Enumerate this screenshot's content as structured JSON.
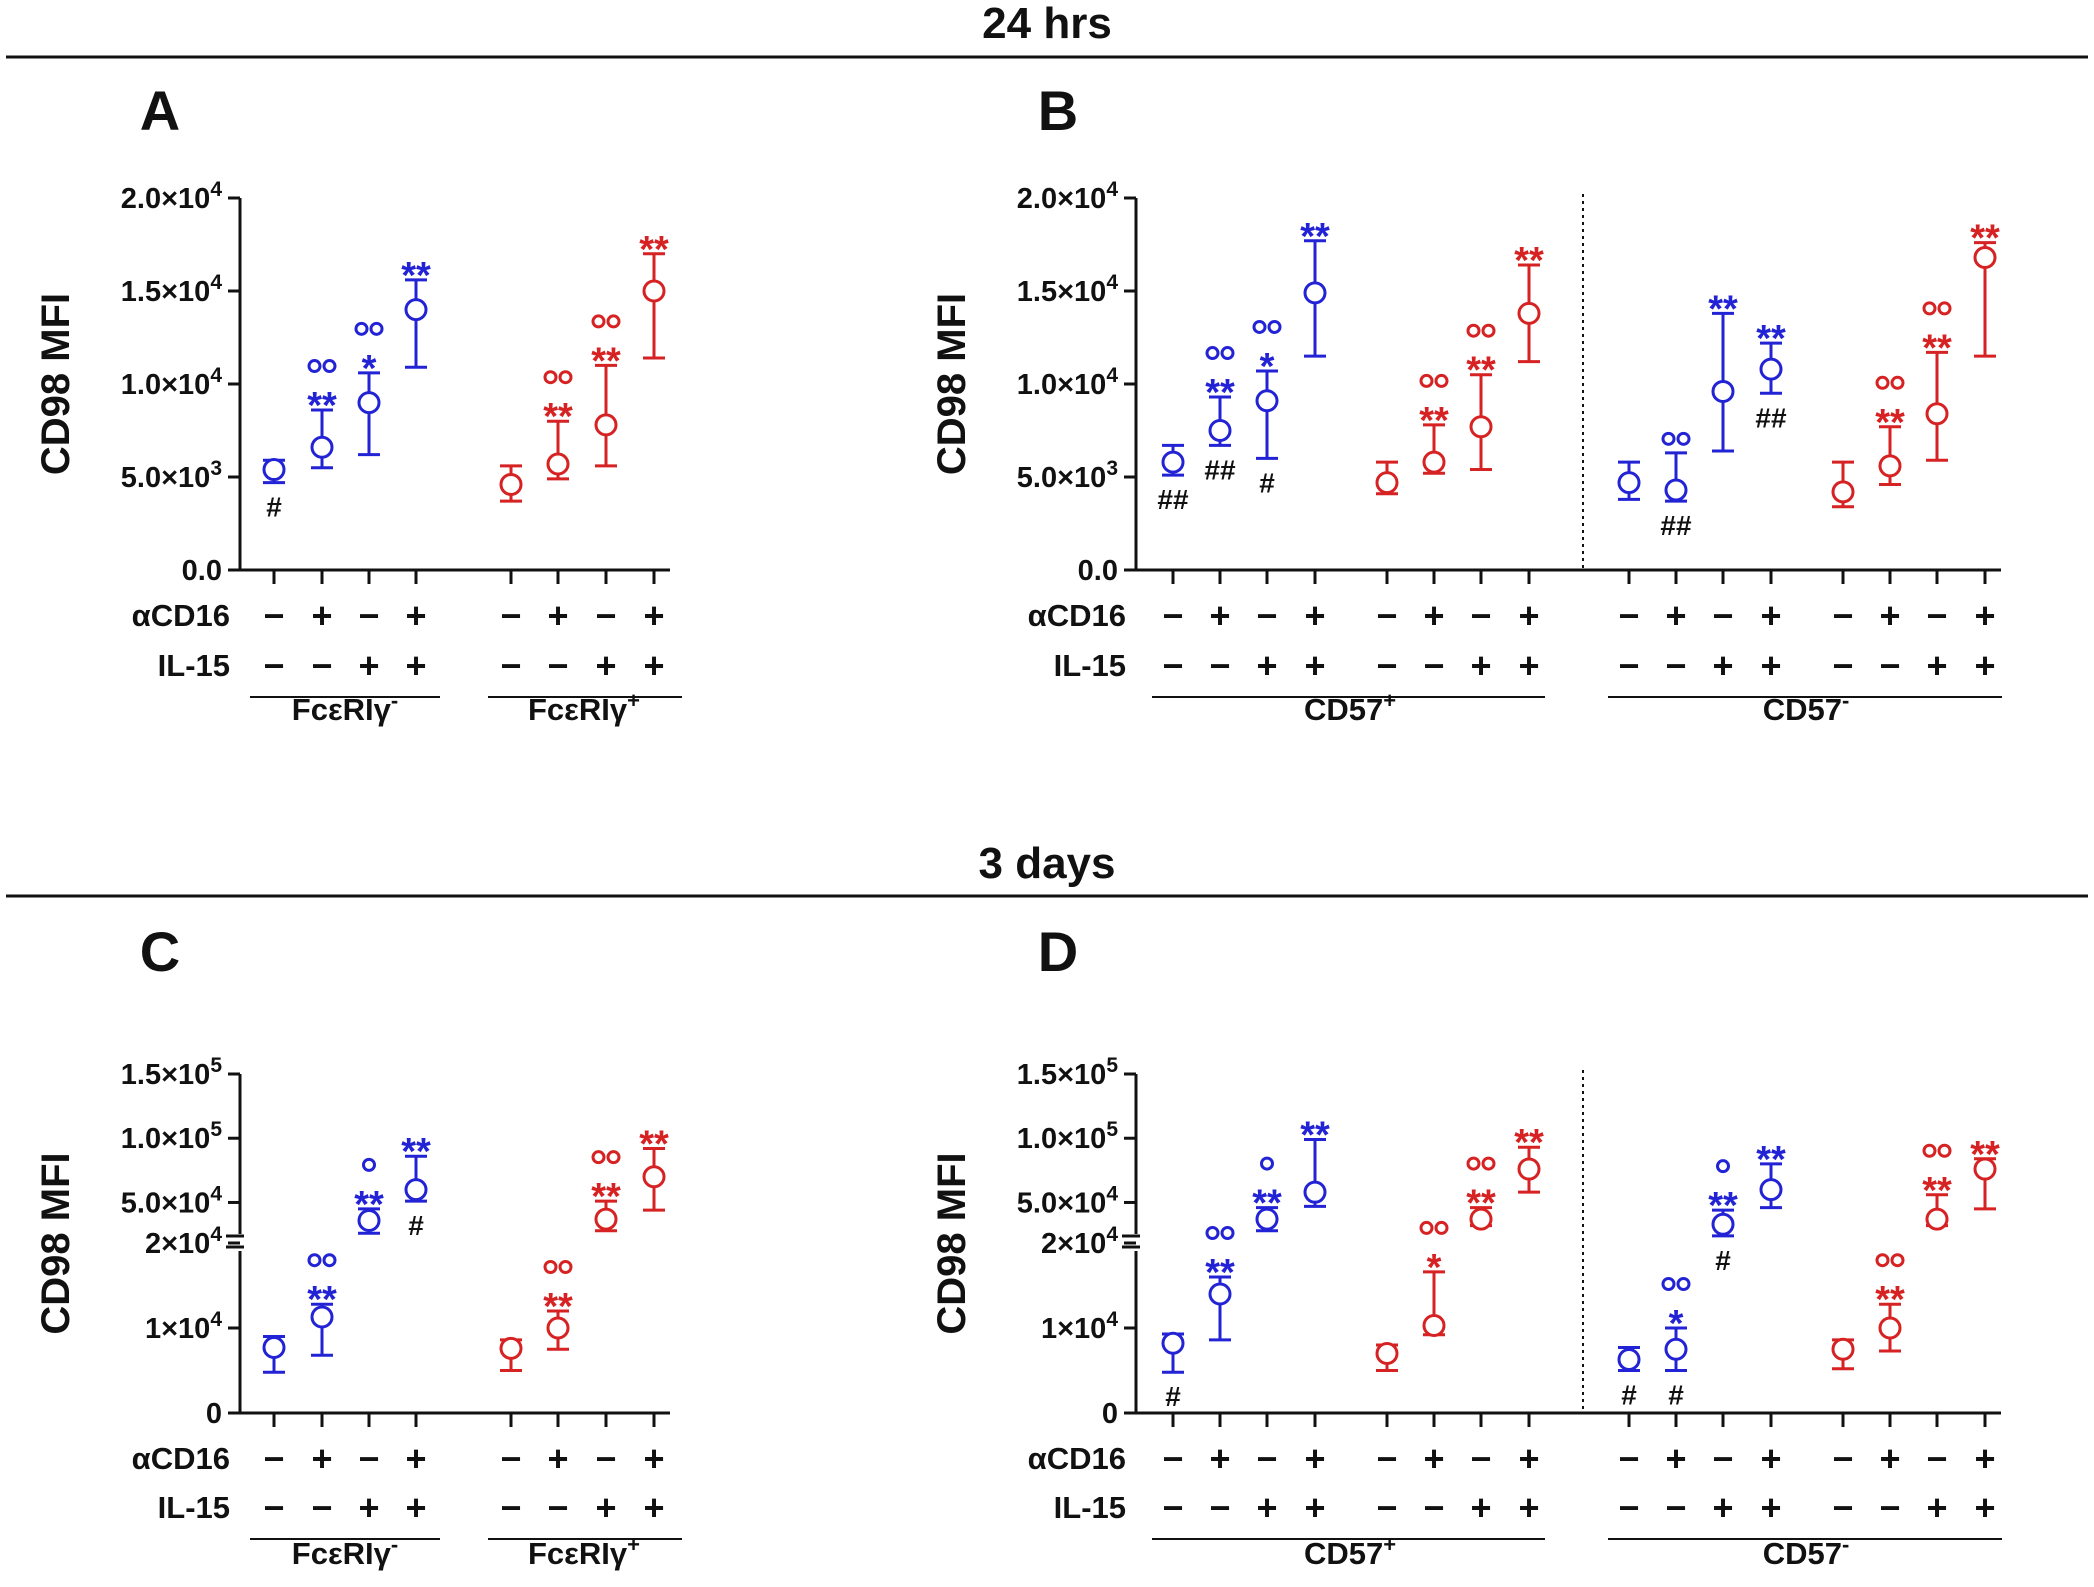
{
  "figure": {
    "sections": [
      "24 hrs",
      "3 days"
    ],
    "colors": {
      "blue": "#2323d6",
      "red": "#d62222",
      "black": "#111111"
    }
  },
  "chart_data": [
    {
      "panel": "A",
      "type": "scatter",
      "subtype": "mean-with-error-bars",
      "section": "24 hrs",
      "ylabel": "CD98 MFI",
      "yscale": "linear",
      "ylim": [
        0,
        20000
      ],
      "yticks": [
        {
          "v": 0,
          "t": "0.0"
        },
        {
          "v": 5000,
          "t": "5.0×10",
          "e": "3"
        },
        {
          "v": 10000,
          "t": "1.0×10",
          "e": "4"
        },
        {
          "v": 15000,
          "t": "1.5×10",
          "e": "4"
        },
        {
          "v": 20000,
          "t": "2.0×10",
          "e": "4"
        }
      ],
      "row_labels": [
        "αCD16",
        "IL-15"
      ],
      "groups": [
        {
          "label": "FcεRIγ",
          "sup": "-",
          "color": "blue",
          "points": [
            {
              "acd16": "−",
              "il15": "−",
              "mean": 5400,
              "lo": 4700,
              "hi": 5900,
              "stars": "",
              "circles": "",
              "hash": "#"
            },
            {
              "acd16": "+",
              "il15": "−",
              "mean": 6600,
              "lo": 5500,
              "hi": 8600,
              "stars": "**",
              "circles": "oo",
              "hash": ""
            },
            {
              "acd16": "−",
              "il15": "+",
              "mean": 9000,
              "lo": 6200,
              "hi": 10600,
              "stars": "*",
              "circles": "oo",
              "hash": ""
            },
            {
              "acd16": "+",
              "il15": "+",
              "mean": 14000,
              "lo": 10900,
              "hi": 15600,
              "stars": "**",
              "circles": "",
              "hash": ""
            }
          ]
        },
        {
          "label": "FcεRIγ",
          "sup": "+",
          "color": "red",
          "points": [
            {
              "acd16": "−",
              "il15": "−",
              "mean": 4600,
              "lo": 3700,
              "hi": 5600,
              "stars": "",
              "circles": "",
              "hash": ""
            },
            {
              "acd16": "+",
              "il15": "−",
              "mean": 5700,
              "lo": 4900,
              "hi": 8000,
              "stars": "**",
              "circles": "oo",
              "hash": ""
            },
            {
              "acd16": "−",
              "il15": "+",
              "mean": 7800,
              "lo": 5600,
              "hi": 11000,
              "stars": "**",
              "circles": "oo",
              "hash": ""
            },
            {
              "acd16": "+",
              "il15": "+",
              "mean": 15000,
              "lo": 11400,
              "hi": 17000,
              "stars": "**",
              "circles": "",
              "hash": ""
            }
          ]
        }
      ]
    },
    {
      "panel": "B",
      "type": "scatter",
      "subtype": "mean-with-error-bars",
      "section": "24 hrs",
      "ylabel": "CD98 MFI",
      "yscale": "linear",
      "ylim": [
        0,
        20000
      ],
      "yticks": [
        {
          "v": 0,
          "t": "0.0"
        },
        {
          "v": 5000,
          "t": "5.0×10",
          "e": "3"
        },
        {
          "v": 10000,
          "t": "1.0×10",
          "e": "4"
        },
        {
          "v": 15000,
          "t": "1.5×10",
          "e": "4"
        },
        {
          "v": 20000,
          "t": "2.0×10",
          "e": "4"
        }
      ],
      "row_labels": [
        "αCD16",
        "IL-15"
      ],
      "subsets": [
        {
          "label": "CD57",
          "sup": "+"
        },
        {
          "label": "CD57",
          "sup": "-"
        }
      ],
      "groups": [
        {
          "subset": 0,
          "color": "blue",
          "points": [
            {
              "acd16": "−",
              "il15": "−",
              "mean": 5800,
              "lo": 5100,
              "hi": 6700,
              "stars": "",
              "circles": "",
              "hash": "##"
            },
            {
              "acd16": "+",
              "il15": "−",
              "mean": 7500,
              "lo": 6700,
              "hi": 9300,
              "stars": "**",
              "circles": "oo",
              "hash": "##"
            },
            {
              "acd16": "−",
              "il15": "+",
              "mean": 9100,
              "lo": 6000,
              "hi": 10700,
              "stars": "*",
              "circles": "oo",
              "hash": "#"
            },
            {
              "acd16": "+",
              "il15": "+",
              "mean": 14900,
              "lo": 11500,
              "hi": 17700,
              "stars": "**",
              "circles": "",
              "hash": ""
            }
          ]
        },
        {
          "subset": 0,
          "color": "red",
          "points": [
            {
              "acd16": "−",
              "il15": "−",
              "mean": 4700,
              "lo": 4100,
              "hi": 5800,
              "stars": "",
              "circles": "",
              "hash": ""
            },
            {
              "acd16": "+",
              "il15": "−",
              "mean": 5800,
              "lo": 5200,
              "hi": 7800,
              "stars": "**",
              "circles": "oo",
              "hash": ""
            },
            {
              "acd16": "−",
              "il15": "+",
              "mean": 7700,
              "lo": 5400,
              "hi": 10500,
              "stars": "**",
              "circles": "oo",
              "hash": ""
            },
            {
              "acd16": "+",
              "il15": "+",
              "mean": 13800,
              "lo": 11200,
              "hi": 16400,
              "stars": "**",
              "circles": "",
              "hash": ""
            }
          ]
        },
        {
          "subset": 1,
          "color": "blue",
          "points": [
            {
              "acd16": "−",
              "il15": "−",
              "mean": 4700,
              "lo": 3800,
              "hi": 5800,
              "stars": "",
              "circles": "",
              "hash": ""
            },
            {
              "acd16": "+",
              "il15": "−",
              "mean": 4300,
              "lo": 3700,
              "hi": 6300,
              "stars": "",
              "circles": "oo",
              "hash": "##"
            },
            {
              "acd16": "−",
              "il15": "+",
              "mean": 9600,
              "lo": 6400,
              "hi": 13800,
              "stars": "**",
              "circles": "",
              "hash": ""
            },
            {
              "acd16": "+",
              "il15": "+",
              "mean": 10800,
              "lo": 9500,
              "hi": 12200,
              "stars": "**",
              "circles": "",
              "hash": "##"
            }
          ]
        },
        {
          "subset": 1,
          "color": "red",
          "points": [
            {
              "acd16": "−",
              "il15": "−",
              "mean": 4200,
              "lo": 3400,
              "hi": 5800,
              "stars": "",
              "circles": "",
              "hash": ""
            },
            {
              "acd16": "+",
              "il15": "−",
              "mean": 5600,
              "lo": 4600,
              "hi": 7700,
              "stars": "**",
              "circles": "oo",
              "hash": ""
            },
            {
              "acd16": "−",
              "il15": "+",
              "mean": 8400,
              "lo": 5900,
              "hi": 11700,
              "stars": "**",
              "circles": "oo",
              "hash": ""
            },
            {
              "acd16": "+",
              "il15": "+",
              "mean": 16800,
              "lo": 11500,
              "hi": 17600,
              "stars": "**",
              "circles": "",
              "hash": ""
            }
          ]
        }
      ]
    },
    {
      "panel": "C",
      "type": "scatter",
      "subtype": "mean-with-error-bars",
      "section": "3 days",
      "ylabel": "CD98 MFI",
      "yscale": "segmented",
      "ysegments": {
        "lower": [
          0,
          20000
        ],
        "upper": [
          20000,
          150000
        ],
        "break_at": 20000
      },
      "yticks": [
        {
          "v": 0,
          "t": "0"
        },
        {
          "v": 10000,
          "t": "1×10",
          "e": "4"
        },
        {
          "v": 20000,
          "t": "2×10",
          "e": "4"
        },
        {
          "v": 50000,
          "t": "5.0×10",
          "e": "4"
        },
        {
          "v": 100000,
          "t": "1.0×10",
          "e": "5"
        },
        {
          "v": 150000,
          "t": "1.5×10",
          "e": "5"
        }
      ],
      "row_labels": [
        "αCD16",
        "IL-15"
      ],
      "groups": [
        {
          "label": "FcεRIγ",
          "sup": "-",
          "color": "blue",
          "points": [
            {
              "acd16": "−",
              "il15": "−",
              "mean": 7700,
              "lo": 4800,
              "hi": 9000,
              "stars": "",
              "circles": "",
              "hash": ""
            },
            {
              "acd16": "+",
              "il15": "−",
              "mean": 11300,
              "lo": 6800,
              "hi": 12800,
              "stars": "**",
              "circles": "oo",
              "hash": ""
            },
            {
              "acd16": "−",
              "il15": "+",
              "mean": 36000,
              "lo": 26000,
              "hi": 45000,
              "stars": "**",
              "circles": "o",
              "hash": ""
            },
            {
              "acd16": "+",
              "il15": "+",
              "mean": 60000,
              "lo": 51000,
              "hi": 86000,
              "stars": "**",
              "circles": "",
              "hash": "#"
            }
          ]
        },
        {
          "label": "FcεRIγ",
          "sup": "+",
          "color": "red",
          "points": [
            {
              "acd16": "−",
              "il15": "−",
              "mean": 7600,
              "lo": 5000,
              "hi": 8600,
              "stars": "",
              "circles": "",
              "hash": ""
            },
            {
              "acd16": "+",
              "il15": "−",
              "mean": 10000,
              "lo": 7500,
              "hi": 12000,
              "stars": "**",
              "circles": "oo",
              "hash": ""
            },
            {
              "acd16": "−",
              "il15": "+",
              "mean": 37000,
              "lo": 28000,
              "hi": 51000,
              "stars": "**",
              "circles": "oo",
              "hash": ""
            },
            {
              "acd16": "+",
              "il15": "+",
              "mean": 70000,
              "lo": 44000,
              "hi": 92000,
              "stars": "**",
              "circles": "",
              "hash": ""
            }
          ]
        }
      ]
    },
    {
      "panel": "D",
      "type": "scatter",
      "subtype": "mean-with-error-bars",
      "section": "3 days",
      "ylabel": "CD98 MFI",
      "yscale": "segmented",
      "ysegments": {
        "lower": [
          0,
          20000
        ],
        "upper": [
          20000,
          150000
        ],
        "break_at": 20000
      },
      "yticks": [
        {
          "v": 0,
          "t": "0"
        },
        {
          "v": 10000,
          "t": "1×10",
          "e": "4"
        },
        {
          "v": 20000,
          "t": "2×10",
          "e": "4"
        },
        {
          "v": 50000,
          "t": "5.0×10",
          "e": "4"
        },
        {
          "v": 100000,
          "t": "1.0×10",
          "e": "5"
        },
        {
          "v": 150000,
          "t": "1.5×10",
          "e": "5"
        }
      ],
      "row_labels": [
        "αCD16",
        "IL-15"
      ],
      "subsets": [
        {
          "label": "CD57",
          "sup": "+"
        },
        {
          "label": "CD57",
          "sup": "-"
        }
      ],
      "groups": [
        {
          "subset": 0,
          "color": "blue",
          "points": [
            {
              "acd16": "−",
              "il15": "−",
              "mean": 8200,
              "lo": 4800,
              "hi": 9300,
              "stars": "",
              "circles": "",
              "hash": "#"
            },
            {
              "acd16": "+",
              "il15": "−",
              "mean": 14000,
              "lo": 8600,
              "hi": 16000,
              "stars": "**",
              "circles": "oo",
              "hash": ""
            },
            {
              "acd16": "−",
              "il15": "+",
              "mean": 37000,
              "lo": 28000,
              "hi": 46000,
              "stars": "**",
              "circles": "o",
              "hash": ""
            },
            {
              "acd16": "+",
              "il15": "+",
              "mean": 58000,
              "lo": 47000,
              "hi": 99000,
              "stars": "**",
              "circles": "",
              "hash": ""
            }
          ]
        },
        {
          "subset": 0,
          "color": "red",
          "points": [
            {
              "acd16": "−",
              "il15": "−",
              "mean": 7000,
              "lo": 5000,
              "hi": 8000,
              "stars": "",
              "circles": "",
              "hash": ""
            },
            {
              "acd16": "+",
              "il15": "−",
              "mean": 10300,
              "lo": 9200,
              "hi": 16600,
              "stars": "*",
              "circles": "oo",
              "hash": ""
            },
            {
              "acd16": "−",
              "il15": "+",
              "mean": 37000,
              "lo": 32000,
              "hi": 46000,
              "stars": "**",
              "circles": "oo",
              "hash": ""
            },
            {
              "acd16": "+",
              "il15": "+",
              "mean": 76000,
              "lo": 58000,
              "hi": 93000,
              "stars": "**",
              "circles": "",
              "hash": ""
            }
          ]
        },
        {
          "subset": 1,
          "color": "blue",
          "points": [
            {
              "acd16": "−",
              "il15": "−",
              "mean": 6300,
              "lo": 5000,
              "hi": 7700,
              "stars": "",
              "circles": "",
              "hash": "#"
            },
            {
              "acd16": "+",
              "il15": "−",
              "mean": 7500,
              "lo": 5000,
              "hi": 10000,
              "stars": "*",
              "circles": "oo",
              "hash": "#"
            },
            {
              "acd16": "−",
              "il15": "+",
              "mean": 33000,
              "lo": 24000,
              "hi": 44000,
              "stars": "**",
              "circles": "o",
              "hash": "#"
            },
            {
              "acd16": "+",
              "il15": "+",
              "mean": 60000,
              "lo": 46000,
              "hi": 80000,
              "stars": "**",
              "circles": "",
              "hash": ""
            }
          ]
        },
        {
          "subset": 1,
          "color": "red",
          "points": [
            {
              "acd16": "−",
              "il15": "−",
              "mean": 7500,
              "lo": 5200,
              "hi": 8600,
              "stars": "",
              "circles": "",
              "hash": ""
            },
            {
              "acd16": "+",
              "il15": "−",
              "mean": 10000,
              "lo": 7300,
              "hi": 12800,
              "stars": "**",
              "circles": "oo",
              "hash": ""
            },
            {
              "acd16": "−",
              "il15": "+",
              "mean": 37000,
              "lo": 32000,
              "hi": 56000,
              "stars": "**",
              "circles": "oo",
              "hash": ""
            },
            {
              "acd16": "+",
              "il15": "+",
              "mean": 76000,
              "lo": 45000,
              "hi": 84000,
              "stars": "**",
              "circles": "",
              "hash": ""
            }
          ]
        }
      ]
    }
  ]
}
